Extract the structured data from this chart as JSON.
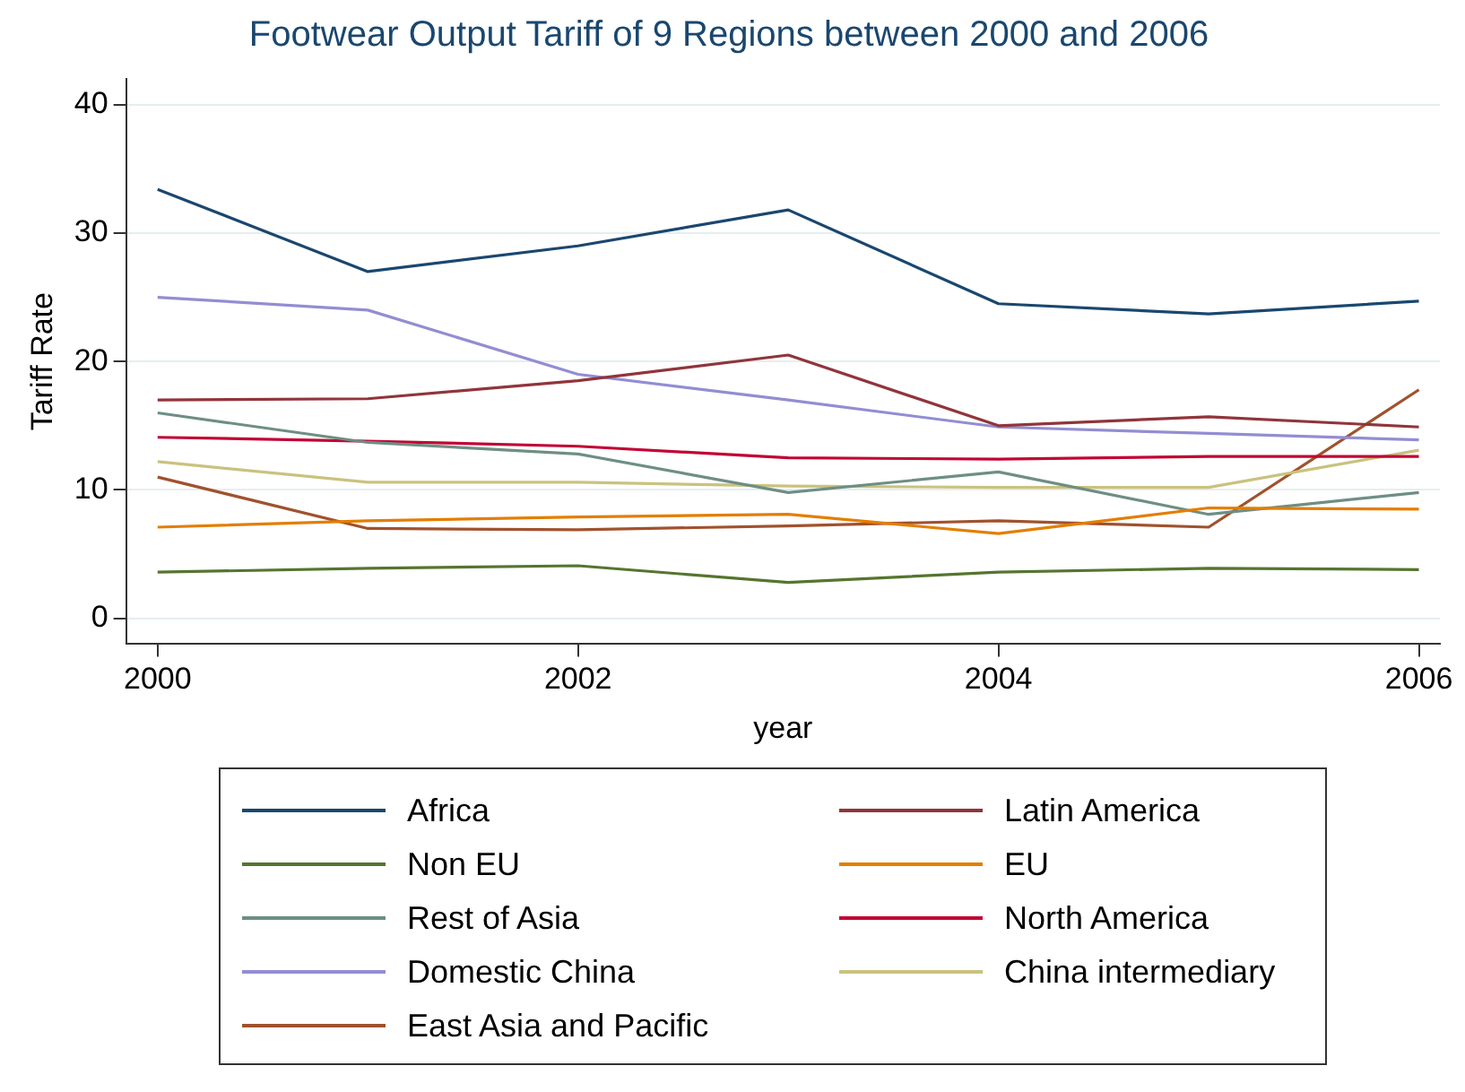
{
  "chart_data": {
    "type": "line",
    "title": "Footwear Output Tariff of 9 Regions between 2000 and 2006",
    "xlabel": "year",
    "ylabel": "Tariff Rate",
    "x": [
      2000,
      2001,
      2002,
      2003,
      2004,
      2005,
      2006
    ],
    "xlim": [
      1999.85,
      2006.1
    ],
    "xticks": [
      2000,
      2002,
      2004,
      2006
    ],
    "ylim": [
      -2,
      42
    ],
    "yticks": [
      0,
      10,
      20,
      30,
      40
    ],
    "grid": "y",
    "legend": "bottom",
    "marker": "none",
    "line_style": "solid",
    "series": [
      {
        "name": "Africa",
        "color": "#1a476f",
        "values": [
          33.4,
          27,
          29,
          31.8,
          24.5,
          23.7,
          24.7
        ]
      },
      {
        "name": "Latin America",
        "color": "#90353b",
        "values": [
          17,
          17.1,
          18.5,
          20.5,
          15,
          15.7,
          14.9
        ]
      },
      {
        "name": "Non EU",
        "color": "#55752f",
        "values": [
          3.6,
          3.9,
          4.1,
          2.8,
          3.6,
          3.9,
          3.8
        ]
      },
      {
        "name": "EU",
        "color": "#e37e00",
        "values": [
          7.1,
          7.6,
          7.9,
          8.1,
          6.6,
          8.6,
          8.5
        ]
      },
      {
        "name": "Rest of Asia",
        "color": "#6e8e84",
        "values": [
          16,
          13.7,
          12.8,
          9.8,
          11.4,
          8.1,
          9.8
        ]
      },
      {
        "name": "North America",
        "color": "#c10534",
        "values": [
          14.1,
          13.8,
          13.4,
          12.5,
          12.4,
          12.6,
          12.6
        ]
      },
      {
        "name": "Domestic China",
        "color": "#938dd2",
        "values": [
          25,
          24,
          19,
          17,
          14.9,
          14.4,
          13.9
        ]
      },
      {
        "name": "China intermediary",
        "color": "#cac27e",
        "values": [
          12.2,
          10.6,
          10.6,
          10.3,
          10.2,
          10.2,
          13.1
        ]
      },
      {
        "name": "East Asia and Pacific",
        "color": "#a0522d",
        "values": [
          11,
          7,
          6.9,
          7.2,
          7.6,
          7.1,
          17.8
        ]
      }
    ]
  }
}
